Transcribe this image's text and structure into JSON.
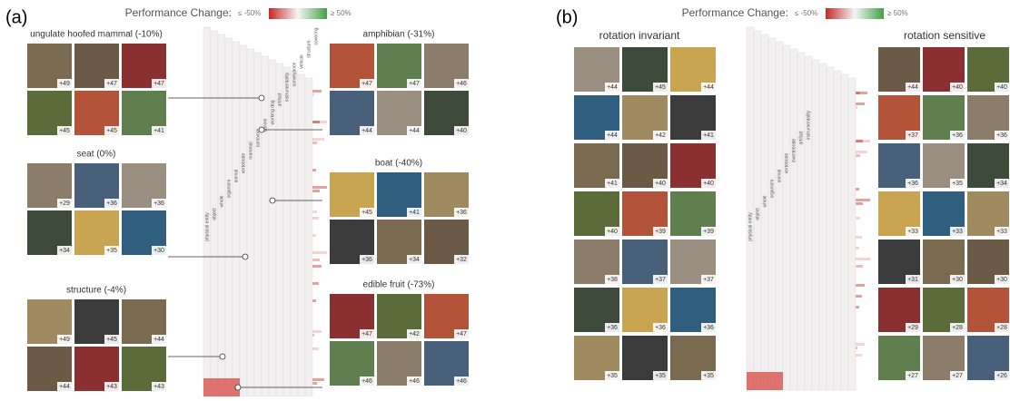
{
  "panel_a": {
    "label": "(a)",
    "legend": {
      "title": "Performance Change:",
      "low": "≤ -50%",
      "high": "≥ 50%"
    },
    "groups": [
      {
        "title": "ungulate hoofed mammal (-10%)",
        "tiles": [
          "+49",
          "+47",
          "+47",
          "+45",
          "+45",
          "+41"
        ]
      },
      {
        "title": "seat (0%)",
        "tiles": [
          "+29",
          "+36",
          "+36",
          "+34",
          "+35",
          "+30"
        ]
      },
      {
        "title": "structure (-4%)",
        "tiles": [
          "+49",
          "+45",
          "+44",
          "+44",
          "+43",
          "+43"
        ]
      },
      {
        "title": "amphibian (-31%)",
        "tiles": [
          "+47",
          "+47",
          "+46",
          "+44",
          "+44",
          "+40"
        ]
      },
      {
        "title": "boat (-40%)",
        "tiles": [
          "+45",
          "+41",
          "+36",
          "+36",
          "+34",
          "+32"
        ]
      },
      {
        "title": "edible fruit (-73%)",
        "tiles": [
          "+47",
          "+42",
          "+47",
          "+46",
          "+46",
          "+46"
        ]
      }
    ],
    "hierarchy_labels": [
      "physical entity",
      "object",
      "whole",
      "organism",
      "animal",
      "vertebrate",
      "mammal",
      "carnivore",
      "canine",
      "working dog",
      "artifact",
      "instrumentality",
      "conveyance",
      "vehicle",
      "structure",
      "covering"
    ]
  },
  "panel_b": {
    "label": "(b)",
    "legend": {
      "title": "Performance Change:",
      "low": "≤ -50%",
      "high": "≥ 50%"
    },
    "left_title": "rotation invariant",
    "left_tiles": [
      "+44",
      "+45",
      "+44",
      "+44",
      "+42",
      "+41",
      "+41",
      "+40",
      "+40",
      "+40",
      "+39",
      "+39",
      "+38",
      "+37",
      "+37",
      "+36",
      "+36",
      "+36",
      "+35",
      "+35",
      "+35"
    ],
    "right_title": "rotation sensitive",
    "right_tiles": [
      "+44",
      "+40",
      "+40",
      "+37",
      "+36",
      "+36",
      "+36",
      "+35",
      "+34",
      "+33",
      "+33",
      "+33",
      "+31",
      "+30",
      "+30",
      "+29",
      "+28",
      "+28",
      "+27",
      "+27",
      "+26"
    ],
    "hierarchy_labels": [
      "physical entity",
      "object",
      "whole",
      "organism",
      "animal",
      "vertebrate",
      "invertebrate",
      "artifact",
      "instrumentality"
    ]
  }
}
